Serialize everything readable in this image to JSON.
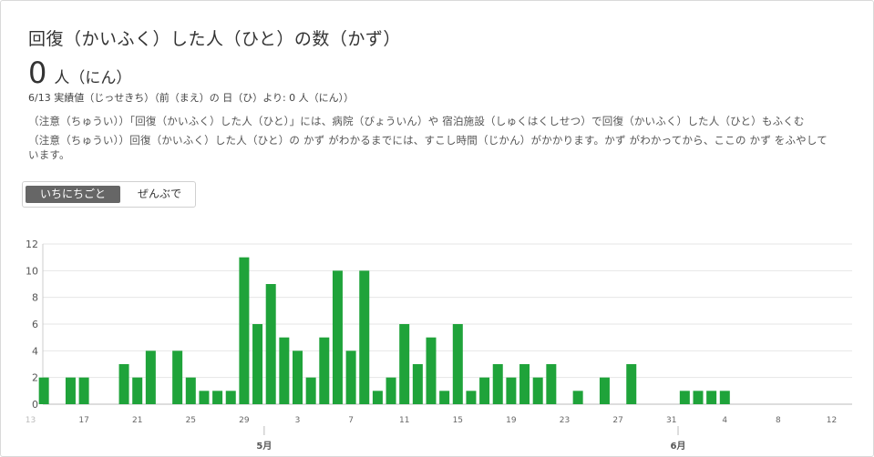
{
  "header": {
    "title": "回復（かいふく）した人（ひと）の数（かず）",
    "value": "0",
    "unit": "人（にん）",
    "change_note": "6/13 実績値（じっせきち）（前（まえ）の 日（ひ）より: 0 人（にん））"
  },
  "notes": {
    "line1": "（注意（ちゅうい））「回復（かいふく）した人（ひと）」には、病院（びょういん）や 宿泊施設（しゅくはくしせつ）で回復（かいふく）した人（ひと）もふくむ",
    "line2": "（注意（ちゅうい））回復（かいふく）した人（ひと）の かず がわかるまでには、すこし時間（じかん）がかかります。かず がわかってから、ここの かず をふやして",
    "line3": "います。"
  },
  "toggle": {
    "daily_label": "いちにちごと",
    "cumulative_label": "ぜんぶで"
  },
  "chart_data": {
    "type": "bar",
    "bar_color": "#1fa33a",
    "ylim": [
      0,
      12
    ],
    "yticks": [
      0,
      2,
      4,
      6,
      8,
      10,
      12
    ],
    "x_tick_labels": [
      {
        "day": 0,
        "label": "13"
      },
      {
        "day": 4,
        "label": "17"
      },
      {
        "day": 8,
        "label": "21"
      },
      {
        "day": 12,
        "label": "25"
      },
      {
        "day": 16,
        "label": "29"
      },
      {
        "day": 20,
        "label": "3"
      },
      {
        "day": 24,
        "label": "7"
      },
      {
        "day": 28,
        "label": "11"
      },
      {
        "day": 32,
        "label": "15"
      },
      {
        "day": 36,
        "label": "19"
      },
      {
        "day": 40,
        "label": "23"
      },
      {
        "day": 44,
        "label": "27"
      },
      {
        "day": 48,
        "label": "31"
      },
      {
        "day": 52,
        "label": "4"
      },
      {
        "day": 56,
        "label": "8"
      },
      {
        "day": 60,
        "label": "12"
      }
    ],
    "month_labels": [
      {
        "day": 18,
        "label": "5月"
      },
      {
        "day": 49,
        "label": "6月"
      }
    ],
    "dates": [
      "4/13",
      "4/14",
      "4/15",
      "4/16",
      "4/17",
      "4/18",
      "4/19",
      "4/20",
      "4/21",
      "4/22",
      "4/23",
      "4/24",
      "4/25",
      "4/26",
      "4/27",
      "4/28",
      "4/29",
      "4/30",
      "5/1",
      "5/2",
      "5/3",
      "5/4",
      "5/5",
      "5/6",
      "5/7",
      "5/8",
      "5/9",
      "5/10",
      "5/11",
      "5/12",
      "5/13",
      "5/14",
      "5/15",
      "5/16",
      "5/17",
      "5/18",
      "5/19",
      "5/20",
      "5/21",
      "5/22",
      "5/23",
      "5/24",
      "5/25",
      "5/26",
      "5/27",
      "5/28",
      "5/29",
      "5/30",
      "5/31",
      "6/1",
      "6/2",
      "6/3",
      "6/4",
      "6/5",
      "6/6",
      "6/7",
      "6/8",
      "6/9",
      "6/10",
      "6/11",
      "6/12",
      "6/13"
    ],
    "values": [
      0,
      2,
      0,
      2,
      2,
      0,
      0,
      3,
      2,
      4,
      0,
      4,
      2,
      1,
      1,
      1,
      11,
      6,
      9,
      5,
      4,
      2,
      5,
      10,
      4,
      10,
      1,
      2,
      6,
      3,
      5,
      1,
      6,
      1,
      2,
      3,
      2,
      3,
      2,
      3,
      0,
      1,
      0,
      2,
      0,
      3,
      0,
      0,
      0,
      1,
      1,
      1,
      1,
      0,
      0,
      0,
      0,
      0,
      0,
      0,
      0,
      0
    ]
  }
}
